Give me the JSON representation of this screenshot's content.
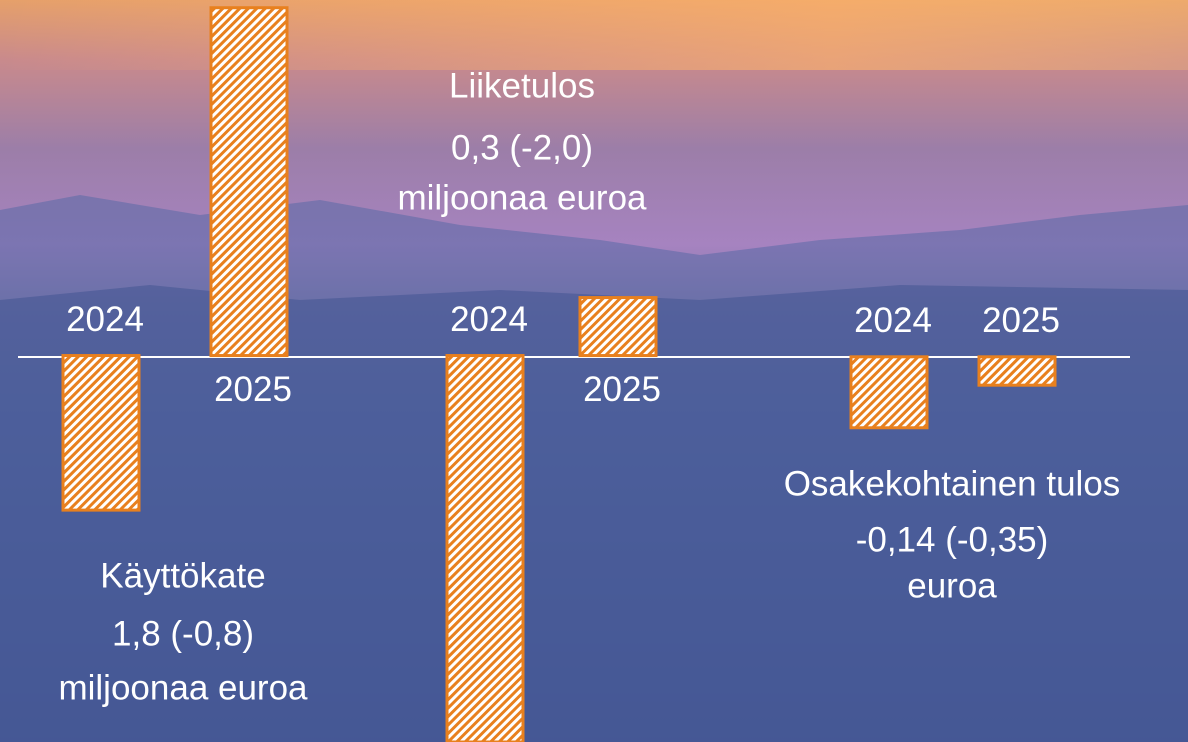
{
  "chart_data": [
    {
      "type": "bar",
      "title": [
        "Käyttökate",
        "1,8 (-0,8)",
        "miljoonaa euroa"
      ],
      "categories": [
        "2024",
        "2025"
      ],
      "values": [
        -0.8,
        1.8
      ],
      "color": "#e8801e",
      "ylim": [
        -2,
        1.84
      ]
    },
    {
      "type": "bar",
      "title": [
        "Liiketulos",
        "0,3 (-2,0)",
        "miljoonaa euroa"
      ],
      "categories": [
        "2024",
        "2025"
      ],
      "values": [
        -2.0,
        0.3
      ],
      "color": "#e8801e",
      "ylim": [
        -2,
        1.84
      ]
    },
    {
      "type": "bar",
      "title": [
        "Osakekohtainen tulos",
        "-0,14 (-0,35)",
        "euroa"
      ],
      "categories": [
        "2024",
        "2025"
      ],
      "values": [
        -0.35,
        -0.14
      ],
      "color": "#e8801e",
      "ylim": [
        -1.9,
        1.76
      ]
    }
  ]
}
